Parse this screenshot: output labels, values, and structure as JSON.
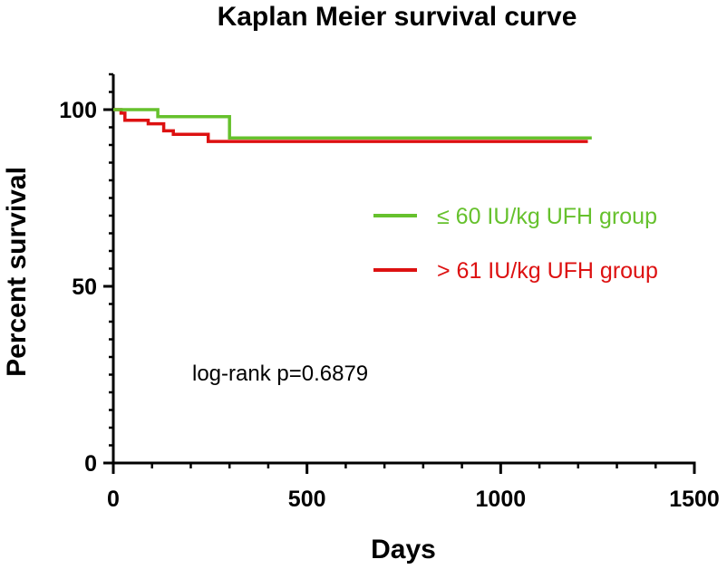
{
  "chart_data": {
    "type": "line",
    "subtype": "kaplan-meier step curve",
    "title": "Kaplan Meier survival curve",
    "xlabel": "Days",
    "ylabel": "Percent survival",
    "xlim": [
      0,
      1500
    ],
    "ylim": [
      0,
      110
    ],
    "xticks": [
      0,
      500,
      1000,
      1500
    ],
    "yticks": [
      0,
      50,
      100
    ],
    "x_minor_step": 100,
    "y_minor_step": 5,
    "grid": false,
    "legend_position": "right-middle",
    "annotation": "log-rank p=0.6879",
    "series": [
      {
        "name": "≤ 60 IU/kg UFH group",
        "color": "#66c12d",
        "steps": [
          [
            0,
            100
          ],
          [
            115,
            100
          ],
          [
            115,
            98
          ],
          [
            300,
            98
          ],
          [
            300,
            92
          ],
          [
            1235,
            92
          ]
        ]
      },
      {
        "name": "> 61 IU/kg UFH group",
        "color": "#dd1111",
        "steps": [
          [
            0,
            100
          ],
          [
            20,
            100
          ],
          [
            20,
            99
          ],
          [
            30,
            99
          ],
          [
            30,
            97
          ],
          [
            90,
            97
          ],
          [
            90,
            96
          ],
          [
            130,
            96
          ],
          [
            130,
            94
          ],
          [
            155,
            94
          ],
          [
            155,
            93
          ],
          [
            245,
            93
          ],
          [
            245,
            91
          ],
          [
            1225,
            91
          ]
        ]
      }
    ]
  }
}
